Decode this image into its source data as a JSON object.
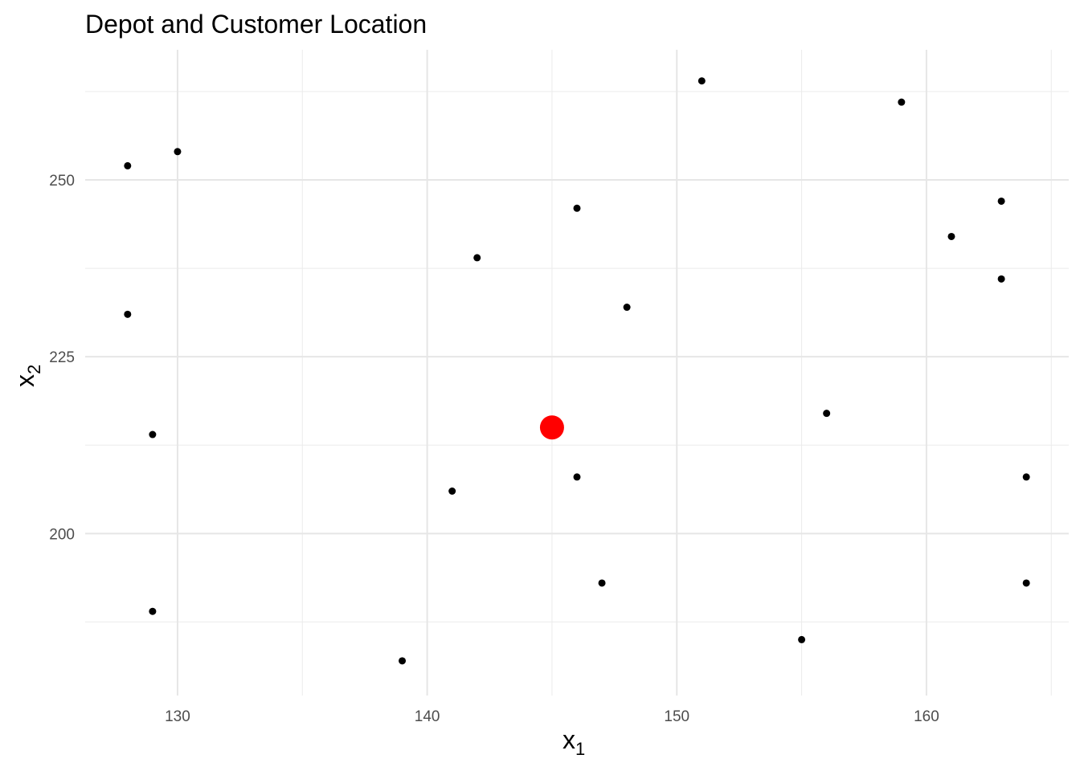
{
  "chart_data": {
    "type": "scatter",
    "title": "Depot and Customer Location",
    "xlabel": "x",
    "xlabel_sub": "1",
    "ylabel": "x",
    "ylabel_sub": "2",
    "xlim": [
      126.3,
      165.7
    ],
    "ylim": [
      177.1,
      268.4
    ],
    "x_ticks": [
      130,
      140,
      150,
      160
    ],
    "y_ticks": [
      200,
      225,
      250
    ],
    "grid": true,
    "legend": "none",
    "customers": {
      "color": "#000000",
      "points": [
        {
          "x": 128,
          "y": 252
        },
        {
          "x": 130,
          "y": 254
        },
        {
          "x": 128,
          "y": 231
        },
        {
          "x": 129,
          "y": 214
        },
        {
          "x": 129,
          "y": 189
        },
        {
          "x": 139,
          "y": 182
        },
        {
          "x": 141,
          "y": 206
        },
        {
          "x": 142,
          "y": 239
        },
        {
          "x": 146,
          "y": 246
        },
        {
          "x": 146,
          "y": 208
        },
        {
          "x": 147,
          "y": 193
        },
        {
          "x": 148,
          "y": 232
        },
        {
          "x": 151,
          "y": 264
        },
        {
          "x": 155,
          "y": 185
        },
        {
          "x": 156,
          "y": 217
        },
        {
          "x": 159,
          "y": 261
        },
        {
          "x": 161,
          "y": 242
        },
        {
          "x": 163,
          "y": 247
        },
        {
          "x": 163,
          "y": 236
        },
        {
          "x": 164,
          "y": 208
        },
        {
          "x": 164,
          "y": 193
        }
      ]
    },
    "depot": {
      "color": "#ff0000",
      "x": 145,
      "y": 215
    }
  }
}
